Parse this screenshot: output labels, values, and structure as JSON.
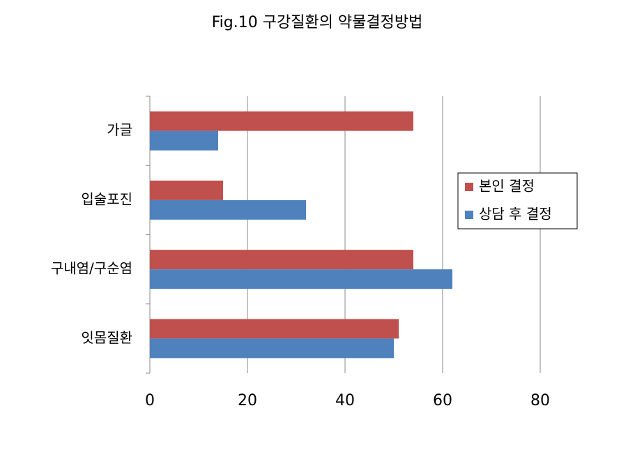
{
  "chart_data": {
    "type": "hbar",
    "title": "Fig.10 구강질환의 약물결정방법",
    "categories": [
      "가글",
      "입술포진",
      "구내염/구순염",
      "잇몸질환"
    ],
    "series": [
      {
        "name": "본인 결정",
        "color": "#c0504d",
        "values": [
          54,
          15,
          54,
          51
        ]
      },
      {
        "name": "상담 후 결정",
        "color": "#4f81bd",
        "values": [
          14,
          32,
          62,
          50
        ]
      }
    ],
    "xlim": [
      0,
      80
    ],
    "xticks": [
      0,
      20,
      40,
      60,
      80
    ],
    "grid": true,
    "legend": "right"
  }
}
